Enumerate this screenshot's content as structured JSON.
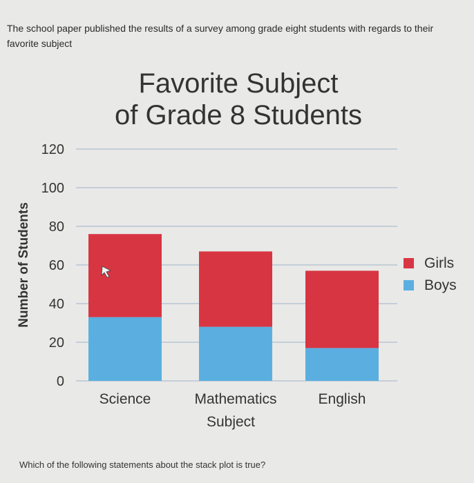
{
  "intro_text": "The school paper published the results of a survey among grade eight students with regards to their favorite subject",
  "question_text": "Which of the following statements about the stack plot is true?",
  "chart_data": {
    "type": "bar",
    "stacked": true,
    "title_lines": [
      "Favorite Subject",
      "of Grade 8 Students"
    ],
    "xlabel": "Subject",
    "ylabel": "Number of Students",
    "categories": [
      "Science",
      "Mathematics",
      "English"
    ],
    "series": [
      {
        "name": "Boys",
        "values": [
          33,
          28,
          17
        ],
        "color": "#5bafe0"
      },
      {
        "name": "Girls",
        "values": [
          43,
          39,
          40
        ],
        "color": "#d83543"
      }
    ],
    "ylim": [
      0,
      120
    ],
    "yticks": [
      0,
      20,
      40,
      60,
      80,
      100,
      120
    ],
    "grid": true,
    "legend": {
      "placement": "right",
      "order": [
        "Girls",
        "Boys"
      ]
    }
  }
}
